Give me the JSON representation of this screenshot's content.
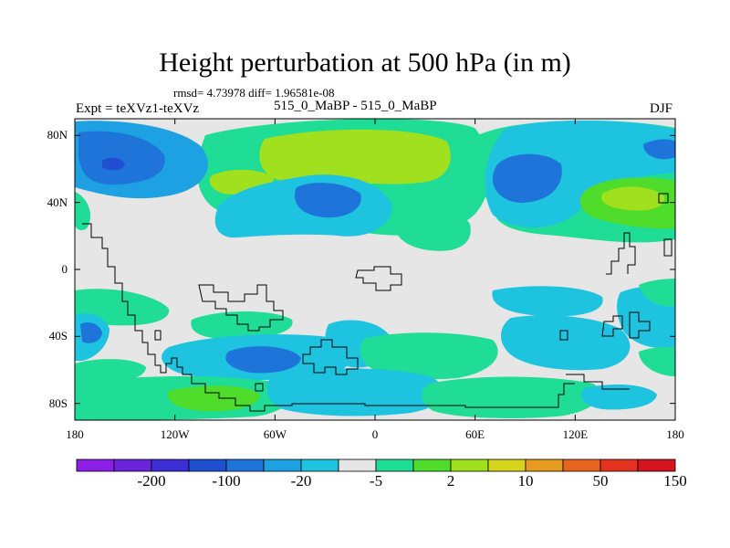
{
  "title": "Height perturbation at 500 hPa (in m)",
  "subtitle": "rmsd= 4.73978  diff= 1.96581e-08",
  "left_label": "Expt = teXVz1-teXVz",
  "center_label": "515_0_MaBP - 515_0_MaBP",
  "right_label": "DJF",
  "lat_ticks": [
    {
      "value": 80,
      "label": "80N"
    },
    {
      "value": 40,
      "label": "40N"
    },
    {
      "value": 0,
      "label": "0"
    },
    {
      "value": -40,
      "label": "40S"
    },
    {
      "value": -80,
      "label": "80S"
    }
  ],
  "lon_ticks": [
    {
      "value": -180,
      "label": "180"
    },
    {
      "value": -120,
      "label": "120W"
    },
    {
      "value": -60,
      "label": "60W"
    },
    {
      "value": 0,
      "label": "0"
    },
    {
      "value": 60,
      "label": "60E"
    },
    {
      "value": 120,
      "label": "120E"
    },
    {
      "value": 180,
      "label": "180"
    }
  ],
  "colorbar": {
    "colors": [
      "#8c1ee6",
      "#6a23d9",
      "#3c2fd6",
      "#2050d2",
      "#1e74d8",
      "#1ea1e2",
      "#1dc3df",
      "#e6e6e6",
      "#1fdc96",
      "#4fdc2a",
      "#a0e01e",
      "#d7d41e",
      "#e69b1e",
      "#e6641e",
      "#e5321e",
      "#d4141e"
    ],
    "labels": [
      {
        "after_index": 1,
        "text": "-200"
      },
      {
        "after_index": 3,
        "text": "-100"
      },
      {
        "after_index": 5,
        "text": "-20"
      },
      {
        "after_index": 7,
        "text": "-5"
      },
      {
        "after_index": 9,
        "text": "2"
      },
      {
        "after_index": 11,
        "text": "10"
      },
      {
        "after_index": 13,
        "text": "50"
      },
      {
        "after_index": 15,
        "text": "150"
      }
    ]
  },
  "colors": {
    "background": "#e6e6e6",
    "coast": "#000000"
  }
}
